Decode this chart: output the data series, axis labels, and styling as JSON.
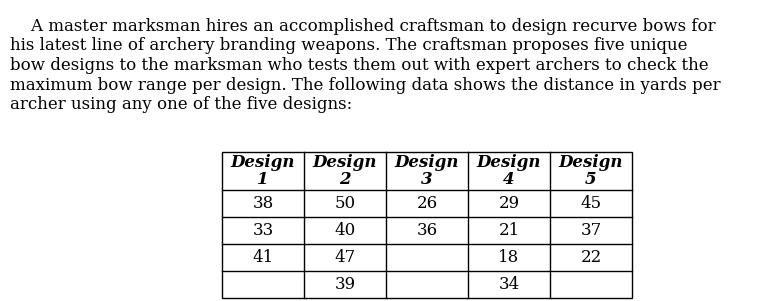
{
  "lines": [
    "    A master marksman hires an accomplished craftsman to design recurve bows for",
    "his latest line of archery branding weapons. The craftsman proposes five unique",
    "bow designs to the marksman who tests them out with expert archers to check the",
    "maximum bow range per design. The following data shows the distance in yards per",
    "archer using any one of the five designs:"
  ],
  "headers_top": [
    "Design",
    "Design",
    "Design",
    "Design",
    "Design"
  ],
  "headers_bot": [
    "1",
    "2",
    "3",
    "4",
    "5"
  ],
  "table_data": [
    [
      "38",
      "50",
      "26",
      "29",
      "45"
    ],
    [
      "33",
      "40",
      "36",
      "21",
      "37"
    ],
    [
      "41",
      "47",
      "",
      "18",
      "22"
    ],
    [
      "",
      "39",
      "",
      "34",
      ""
    ]
  ],
  "background_color": "#ffffff",
  "text_color": "#000000",
  "para_fontsize": 12.0,
  "table_fontsize": 12.0
}
